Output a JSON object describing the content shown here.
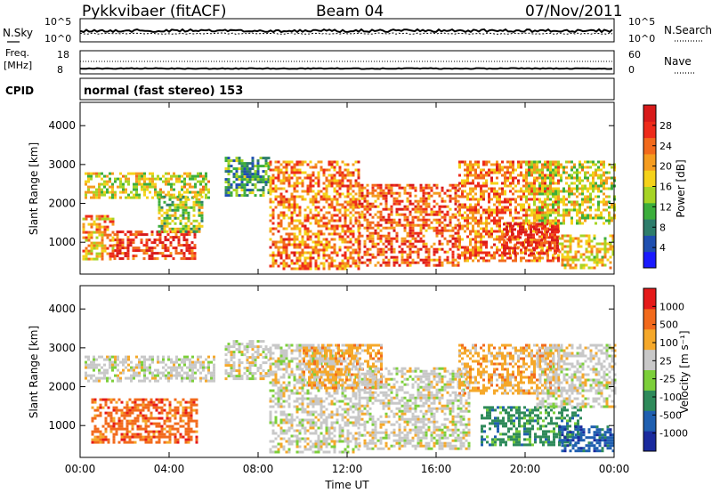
{
  "header": {
    "station": "Pykkvibaer (fitACF)",
    "beam": "Beam 04",
    "date": "07/Nov/2011"
  },
  "strip_panels": {
    "nsky": {
      "label": "N.Sky",
      "ticks": [
        "10^5",
        "10^0"
      ],
      "right_label": "N.Search",
      "right_ticks": [
        "10^5",
        "10^0"
      ]
    },
    "freq": {
      "label_line1": "Freq.",
      "label_line2": "[MHz]",
      "ticks": [
        "18",
        "8"
      ],
      "right_label": "Nave",
      "right_ticks": [
        "60",
        "0"
      ]
    },
    "cpid": {
      "label": "CPID",
      "mode_text": "normal (fast stereo) 153"
    }
  },
  "chart_data": [
    {
      "type": "heatmap",
      "title": "",
      "xlabel": "",
      "ylabel": "Slant Range [km]",
      "x_ticks": [
        "00:00",
        "04:00",
        "08:00",
        "12:00",
        "16:00",
        "20:00",
        "00:00"
      ],
      "y_ticks": [
        "1000",
        "2000",
        "3000",
        "4000"
      ],
      "xlim_hours": [
        0,
        24
      ],
      "ylim_km": [
        180,
        4600
      ],
      "colorbar": {
        "label": "Power [dB]",
        "ticks": [
          "28",
          "24",
          "20",
          "16",
          "12",
          "8",
          "4"
        ],
        "colors": [
          "#1a1aff",
          "#1f4fb0",
          "#2e7d6b",
          "#3cae3c",
          "#a6d425",
          "#f5d21a",
          "#f59c1f",
          "#f26a1c",
          "#ee2b1a",
          "#d81a1a"
        ]
      },
      "regions": [
        {
          "t": [
            0.2,
            5.8
          ],
          "r": [
            2150,
            2800
          ],
          "v": 14
        },
        {
          "t": [
            1.5,
            5.2
          ],
          "r": [
            600,
            1300
          ],
          "v": 24
        },
        {
          "t": [
            0.1,
            1.5
          ],
          "r": [
            600,
            1700
          ],
          "v": 18
        },
        {
          "t": [
            3.5,
            5.5
          ],
          "r": [
            1300,
            2200
          ],
          "v": 12
        },
        {
          "t": [
            6.5,
            8.5
          ],
          "r": [
            2200,
            3200
          ],
          "v": 8
        },
        {
          "t": [
            8.5,
            12.5
          ],
          "r": [
            350,
            3100
          ],
          "v": 20
        },
        {
          "t": [
            12.5,
            17.0
          ],
          "r": [
            400,
            2500
          ],
          "v": 22
        },
        {
          "t": [
            17.0,
            21.5
          ],
          "r": [
            500,
            3100
          ],
          "v": 20
        },
        {
          "t": [
            19.0,
            21.5
          ],
          "r": [
            700,
            1500
          ],
          "v": 26
        },
        {
          "t": [
            21.5,
            24.0
          ],
          "r": [
            350,
            1200
          ],
          "v": 16
        },
        {
          "t": [
            20.0,
            24.0
          ],
          "r": [
            1500,
            3100
          ],
          "v": 14
        }
      ]
    },
    {
      "type": "heatmap",
      "title": "",
      "xlabel": "Time UT",
      "ylabel": "Slant Range [km]",
      "x_ticks": [
        "00:00",
        "04:00",
        "08:00",
        "12:00",
        "16:00",
        "20:00",
        "00:00"
      ],
      "y_ticks": [
        "1000",
        "2000",
        "3000",
        "4000"
      ],
      "xlim_hours": [
        0,
        24
      ],
      "ylim_km": [
        180,
        4600
      ],
      "colorbar": {
        "label": "Velocity [m s⁻¹]",
        "ticks": [
          "1000",
          "500",
          "100",
          "25",
          "-25",
          "-100",
          "-500",
          "-1000"
        ],
        "colors": [
          "#1a2a9e",
          "#1f5fb0",
          "#2e8a5a",
          "#7ccf3a",
          "#c8c8c8",
          "#f5a82a",
          "#f26a1c",
          "#e51a1a"
        ]
      },
      "regions": [
        {
          "t": [
            0.2,
            6.0
          ],
          "r": [
            2150,
            2800
          ],
          "v": 4
        },
        {
          "t": [
            0.5,
            5.2
          ],
          "r": [
            600,
            1700
          ],
          "v": 6
        },
        {
          "t": [
            6.5,
            8.5
          ],
          "r": [
            2200,
            3200
          ],
          "v": 4
        },
        {
          "t": [
            8.5,
            12.5
          ],
          "r": [
            350,
            3100
          ],
          "v": 4
        },
        {
          "t": [
            10.0,
            13.5
          ],
          "r": [
            2000,
            3100
          ],
          "v": 5
        },
        {
          "t": [
            12.5,
            17.5
          ],
          "r": [
            400,
            2500
          ],
          "v": 4
        },
        {
          "t": [
            17.0,
            21.5
          ],
          "r": [
            1800,
            3100
          ],
          "v": 5
        },
        {
          "t": [
            18.0,
            22.5
          ],
          "r": [
            500,
            1500
          ],
          "v": 2
        },
        {
          "t": [
            21.5,
            24.0
          ],
          "r": [
            350,
            1000
          ],
          "v": 1
        },
        {
          "t": [
            20.5,
            24.0
          ],
          "r": [
            1500,
            3100
          ],
          "v": 4
        }
      ]
    }
  ]
}
